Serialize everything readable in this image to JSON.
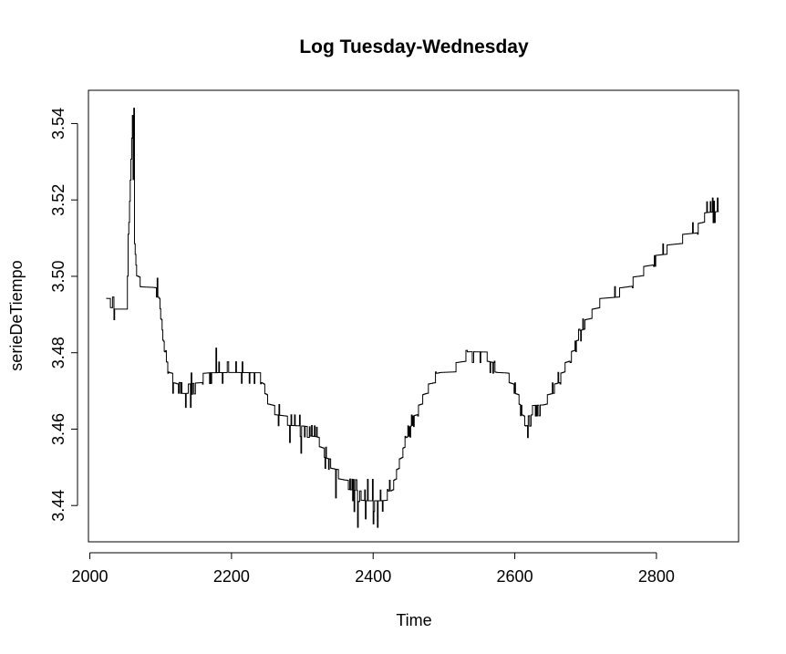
{
  "chart_data": {
    "type": "line",
    "title": "Log Tuesday-Wednesday",
    "xlabel": "Time",
    "ylabel": "serieDeTiempo",
    "xlim": [
      1998,
      2916
    ],
    "ylim": [
      3.4305,
      3.5487
    ],
    "x_ticks": [
      2000,
      2200,
      2400,
      2600,
      2800
    ],
    "y_ticks": [
      3.44,
      3.46,
      3.48,
      3.5,
      3.52,
      3.54
    ],
    "x_tick_labels": [
      "2000",
      "2200",
      "2400",
      "2600",
      "2800"
    ],
    "y_tick_labels": [
      "3.44",
      "3.46",
      "3.48",
      "3.50",
      "3.52",
      "3.54"
    ],
    "grid": false,
    "line_color": "#000000",
    "x_start": 2023,
    "x_end": 2888,
    "step": 1,
    "level_step": 0.0028,
    "trend_knots": [
      [
        2023,
        3.4932
      ],
      [
        2033,
        3.4928
      ],
      [
        2034,
        3.4905
      ],
      [
        2052,
        3.4905
      ],
      [
        2054,
        3.51
      ],
      [
        2058,
        3.53
      ],
      [
        2060,
        3.54
      ],
      [
        2062,
        3.512
      ],
      [
        2066,
        3.501
      ],
      [
        2072,
        3.4975
      ],
      [
        2090,
        3.4965
      ],
      [
        2097,
        3.495
      ],
      [
        2105,
        3.48
      ],
      [
        2112,
        3.475
      ],
      [
        2125,
        3.4705
      ],
      [
        2135,
        3.47
      ],
      [
        2150,
        3.4725
      ],
      [
        2170,
        3.4745
      ],
      [
        2200,
        3.475
      ],
      [
        2240,
        3.4745
      ],
      [
        2250,
        3.468
      ],
      [
        2260,
        3.465
      ],
      [
        2280,
        3.462
      ],
      [
        2300,
        3.461
      ],
      [
        2320,
        3.458
      ],
      [
        2335,
        3.452
      ],
      [
        2345,
        3.4495
      ],
      [
        2360,
        3.446
      ],
      [
        2390,
        3.4415
      ],
      [
        2410,
        3.4415
      ],
      [
        2425,
        3.443
      ],
      [
        2440,
        3.453
      ],
      [
        2455,
        3.462
      ],
      [
        2475,
        3.47
      ],
      [
        2495,
        3.475
      ],
      [
        2515,
        3.476
      ],
      [
        2535,
        3.4795
      ],
      [
        2560,
        3.479
      ],
      [
        2575,
        3.475
      ],
      [
        2590,
        3.474
      ],
      [
        2605,
        3.468
      ],
      [
        2615,
        3.461
      ],
      [
        2625,
        3.465
      ],
      [
        2640,
        3.466
      ],
      [
        2660,
        3.472
      ],
      [
        2680,
        3.48
      ],
      [
        2700,
        3.488
      ],
      [
        2720,
        3.493
      ],
      [
        2750,
        3.496
      ],
      [
        2780,
        3.501
      ],
      [
        2800,
        3.505
      ],
      [
        2830,
        3.509
      ],
      [
        2855,
        3.512
      ],
      [
        2870,
        3.516
      ],
      [
        2888,
        3.518
      ]
    ],
    "noise_segments": [
      [
        2023,
        2034,
        0.003
      ],
      [
        2060,
        2066,
        0.004
      ],
      [
        2090,
        2110,
        0.002
      ],
      [
        2115,
        2150,
        0.003
      ],
      [
        2160,
        2200,
        0.003
      ],
      [
        2205,
        2245,
        0.002
      ],
      [
        2250,
        2320,
        0.0025
      ],
      [
        2330,
        2360,
        0.003
      ],
      [
        2360,
        2425,
        0.0045
      ],
      [
        2430,
        2475,
        0.0015
      ],
      [
        2510,
        2590,
        0.002
      ],
      [
        2600,
        2640,
        0.003
      ],
      [
        2640,
        2760,
        0.0015
      ],
      [
        2780,
        2810,
        0.002
      ],
      [
        2850,
        2888,
        0.003
      ]
    ],
    "spikes": [
      [
        2378,
        3.4343
      ],
      [
        2389,
        3.4365
      ],
      [
        2400,
        3.4352
      ],
      [
        2406,
        3.4343
      ],
      [
        2135,
        3.4657
      ],
      [
        2142,
        3.4657
      ],
      [
        2282,
        3.4565
      ],
      [
        2298,
        3.4537
      ],
      [
        2178,
        3.4812
      ],
      [
        2095,
        3.4995
      ],
      [
        2062,
        3.544
      ],
      [
        2879,
        3.5205
      ],
      [
        2886,
        3.5205
      ],
      [
        2347,
        3.442
      ],
      [
        2320,
        3.4605
      ]
    ]
  }
}
